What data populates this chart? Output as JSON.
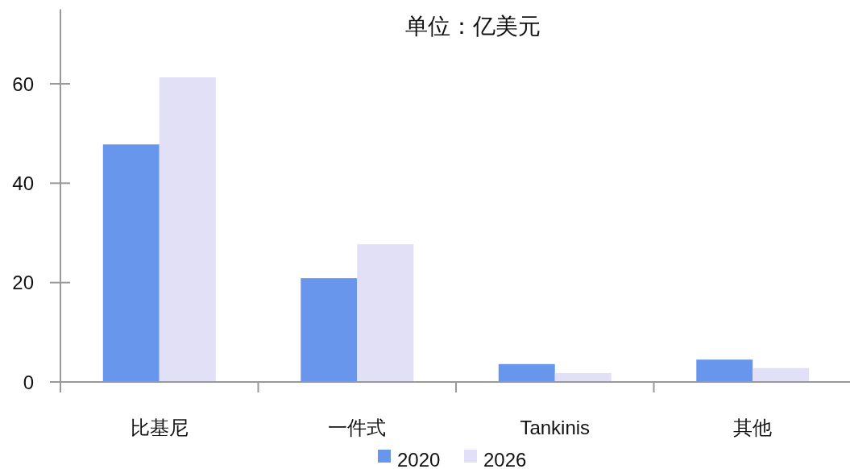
{
  "chart_data": {
    "type": "bar",
    "title": "单位：亿美元",
    "categories": [
      "比基尼",
      "一件式",
      "Tankinis",
      "其他"
    ],
    "series": [
      {
        "name": "2020",
        "color": "#6996ed",
        "values": [
          47.8,
          20.9,
          3.6,
          4.5
        ]
      },
      {
        "name": "2026",
        "color": "#e1e0f7",
        "values": [
          61.3,
          27.7,
          1.8,
          2.8
        ]
      }
    ],
    "ylim": [
      0,
      75
    ],
    "yticks": [
      0,
      20,
      40,
      60
    ],
    "grid": false,
    "legend": "bottom"
  }
}
